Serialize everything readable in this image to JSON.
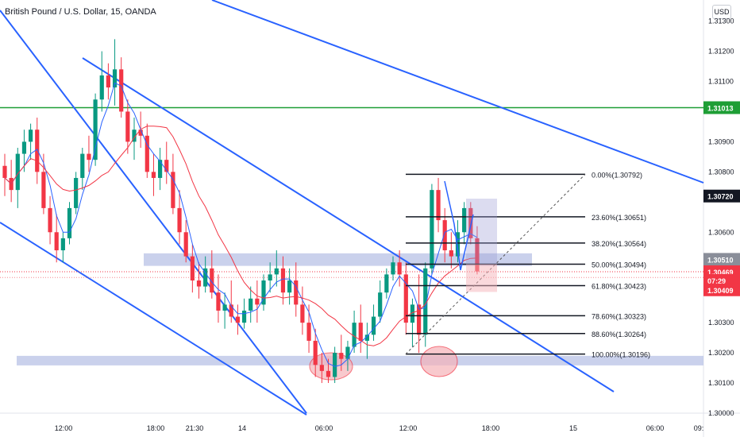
{
  "header": {
    "title": "British Pound / U.S. Dollar, 15, OANDA",
    "currency": "USD"
  },
  "colors": {
    "up": "#089981",
    "down": "#f23645",
    "trend": "#2962ff",
    "resistance": "#1e9e35",
    "zone": "#b8c2e6",
    "ma_fast": "#2962ff",
    "ma_slow": "#f23645",
    "fib": "#131722"
  },
  "chart_data": {
    "type": "candlestick",
    "symbol": "British Pound / U.S. Dollar",
    "interval": "15",
    "ylim": [
      1.3,
      1.3137
    ],
    "y_ticks": [
      "1.31300",
      "1.31200",
      "1.31100",
      "1.31013",
      "1.30900",
      "1.30800",
      "1.30720",
      "1.30600",
      "1.30510",
      "1.30469",
      "07:29",
      "1.30409",
      "1.30300",
      "1.30200",
      "1.30100",
      "1.30000"
    ],
    "x_ticks": [
      "12:00",
      "18:00",
      "21:30",
      "14",
      "06:00",
      "12:00",
      "18:00",
      "15",
      "06:00",
      "09:"
    ],
    "price_labels": [
      {
        "text": "1.31013",
        "price": 1.31013,
        "color": "#1e9e35"
      },
      {
        "text": "1.30720",
        "price": 1.3072,
        "color": "#131722"
      },
      {
        "text": "1.30510",
        "price": 1.3051,
        "color": "#8a8e99"
      },
      {
        "text": "1.30469",
        "price": 1.30469,
        "color": "#f23645"
      },
      {
        "text": "07:29",
        "price": 1.3044,
        "color": "#f23645"
      },
      {
        "text": "1.30409",
        "price": 1.30409,
        "color": "#f23645"
      }
    ],
    "ohlc": [
      [
        1.3082,
        1.3086,
        1.3072,
        1.3078
      ],
      [
        1.3078,
        1.3084,
        1.307,
        1.3074
      ],
      [
        1.3074,
        1.3088,
        1.3068,
        1.3086
      ],
      [
        1.3086,
        1.3094,
        1.308,
        1.309
      ],
      [
        1.309,
        1.3096,
        1.3084,
        1.3094
      ],
      [
        1.3094,
        1.3098,
        1.3076,
        1.308
      ],
      [
        1.308,
        1.3086,
        1.3066,
        1.3068
      ],
      [
        1.3068,
        1.3072,
        1.3056,
        1.306
      ],
      [
        1.306,
        1.3066,
        1.305,
        1.3054
      ],
      [
        1.3054,
        1.306,
        1.305,
        1.3058
      ],
      [
        1.3058,
        1.307,
        1.3056,
        1.3068
      ],
      [
        1.3068,
        1.308,
        1.3066,
        1.3078
      ],
      [
        1.3078,
        1.3088,
        1.3074,
        1.3086
      ],
      [
        1.3086,
        1.3092,
        1.308,
        1.3084
      ],
      [
        1.3084,
        1.3106,
        1.3082,
        1.3104
      ],
      [
        1.3104,
        1.312,
        1.31,
        1.3112
      ],
      [
        1.3112,
        1.3116,
        1.3104,
        1.3108
      ],
      [
        1.3108,
        1.3124,
        1.3102,
        1.3114
      ],
      [
        1.3114,
        1.3118,
        1.3098,
        1.31
      ],
      [
        1.31,
        1.3104,
        1.3086,
        1.309
      ],
      [
        1.309,
        1.3098,
        1.3084,
        1.3094
      ],
      [
        1.3094,
        1.31,
        1.3088,
        1.3092
      ],
      [
        1.3092,
        1.3096,
        1.3078,
        1.308
      ],
      [
        1.308,
        1.3086,
        1.3072,
        1.3078
      ],
      [
        1.3078,
        1.3088,
        1.3074,
        1.3084
      ],
      [
        1.3084,
        1.309,
        1.3076,
        1.308
      ],
      [
        1.308,
        1.3086,
        1.3066,
        1.3068
      ],
      [
        1.3068,
        1.3074,
        1.3056,
        1.306
      ],
      [
        1.306,
        1.3064,
        1.305,
        1.3052
      ],
      [
        1.3052,
        1.3056,
        1.304,
        1.3044
      ],
      [
        1.3044,
        1.305,
        1.3038,
        1.3042
      ],
      [
        1.3042,
        1.3052,
        1.304,
        1.3048
      ],
      [
        1.3048,
        1.3054,
        1.3038,
        1.304
      ],
      [
        1.304,
        1.3046,
        1.303,
        1.3034
      ],
      [
        1.3034,
        1.304,
        1.3028,
        1.3036
      ],
      [
        1.3036,
        1.3044,
        1.303,
        1.3032
      ],
      [
        1.3032,
        1.3036,
        1.3026,
        1.303
      ],
      [
        1.303,
        1.3038,
        1.3028,
        1.3034
      ],
      [
        1.3034,
        1.3042,
        1.303,
        1.3038
      ],
      [
        1.3038,
        1.3044,
        1.303,
        1.3036
      ],
      [
        1.3036,
        1.3046,
        1.3034,
        1.3044
      ],
      [
        1.3044,
        1.305,
        1.304,
        1.3046
      ],
      [
        1.3046,
        1.3054,
        1.3042,
        1.3048
      ],
      [
        1.3048,
        1.3052,
        1.3036,
        1.304
      ],
      [
        1.304,
        1.3048,
        1.3036,
        1.3044
      ],
      [
        1.3044,
        1.305,
        1.3032,
        1.3036
      ],
      [
        1.3036,
        1.3042,
        1.3026,
        1.303
      ],
      [
        1.303,
        1.3036,
        1.302,
        1.3024
      ],
      [
        1.3024,
        1.3028,
        1.3012,
        1.3016
      ],
      [
        1.3016,
        1.302,
        1.301,
        1.3014
      ],
      [
        1.3014,
        1.3018,
        1.301,
        1.3012
      ],
      [
        1.3012,
        1.3022,
        1.301,
        1.302
      ],
      [
        1.302,
        1.3026,
        1.3014,
        1.3018
      ],
      [
        1.3018,
        1.3024,
        1.3014,
        1.3022
      ],
      [
        1.3022,
        1.3034,
        1.302,
        1.303
      ],
      [
        1.303,
        1.3036,
        1.302,
        1.3024
      ],
      [
        1.3024,
        1.303,
        1.3018,
        1.3026
      ],
      [
        1.3026,
        1.3036,
        1.3024,
        1.3032
      ],
      [
        1.3032,
        1.3044,
        1.303,
        1.304
      ],
      [
        1.304,
        1.3048,
        1.3038,
        1.3046
      ],
      [
        1.3046,
        1.3052,
        1.3044,
        1.305
      ],
      [
        1.305,
        1.3054,
        1.3042,
        1.3046
      ],
      [
        1.3046,
        1.305,
        1.3026,
        1.303
      ],
      [
        1.303,
        1.3038,
        1.3022,
        1.3036
      ],
      [
        1.3036,
        1.3046,
        1.302,
        1.3026
      ],
      [
        1.3026,
        1.305,
        1.3022,
        1.3048
      ],
      [
        1.3048,
        1.3076,
        1.3046,
        1.3074
      ],
      [
        1.3074,
        1.3078,
        1.306,
        1.3064
      ],
      [
        1.3064,
        1.3068,
        1.305,
        1.3054
      ],
      [
        1.3054,
        1.306,
        1.3048,
        1.3052
      ],
      [
        1.3052,
        1.3064,
        1.305,
        1.306
      ],
      [
        1.306,
        1.307,
        1.3056,
        1.3068
      ],
      [
        1.3068,
        1.307,
        1.3056,
        1.3058
      ],
      [
        1.3058,
        1.3062,
        1.3046,
        1.3047
      ]
    ]
  }
}
